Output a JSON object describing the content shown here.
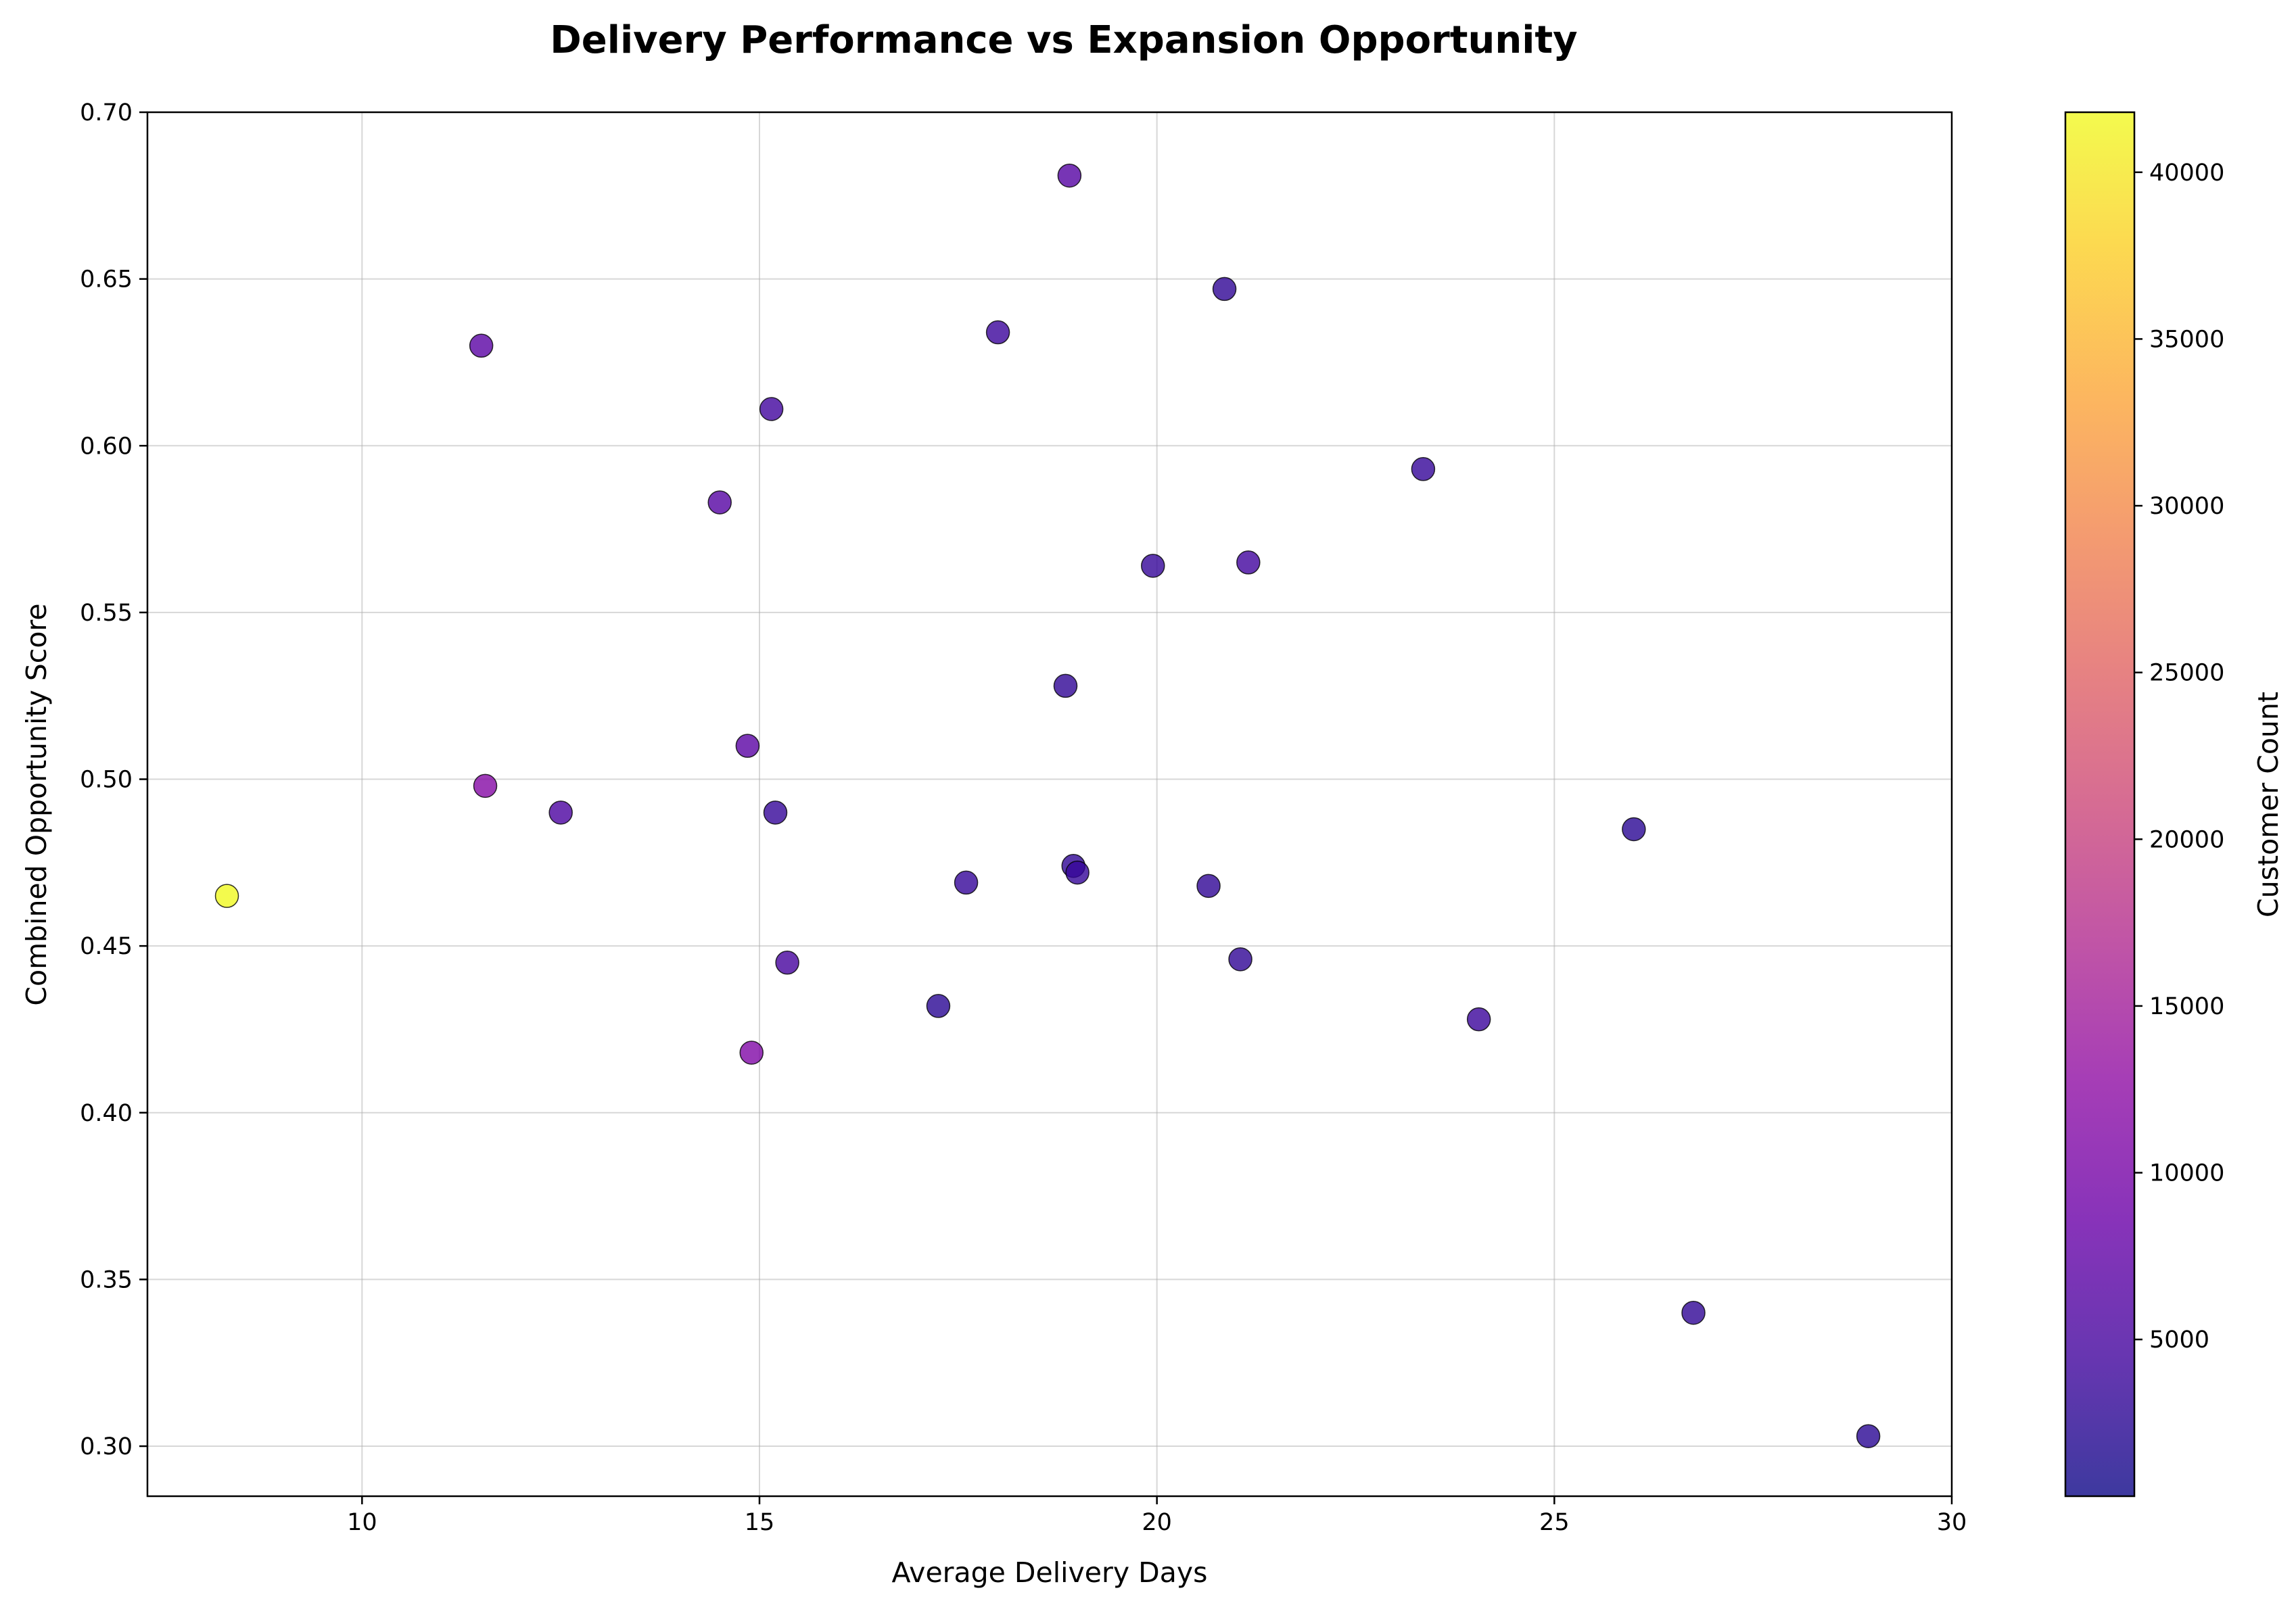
{
  "chart_data": {
    "type": "scatter",
    "title": "Delivery Performance vs Expansion Opportunity",
    "xlabel": "Average Delivery Days",
    "ylabel": "Combined Opportunity Score",
    "colorbar_label": "Customer Count",
    "xlim": [
      7.3,
      30
    ],
    "ylim": [
      0.285,
      0.7
    ],
    "xticks": [
      10,
      15,
      20,
      25,
      30
    ],
    "yticks": [
      0.3,
      0.35,
      0.4,
      0.45,
      0.5,
      0.55,
      0.6,
      0.65,
      0.7
    ],
    "xtick_labels": [
      "10",
      "15",
      "20",
      "25",
      "30"
    ],
    "ytick_labels": [
      "0.30",
      "0.35",
      "0.40",
      "0.45",
      "0.50",
      "0.55",
      "0.60",
      "0.65",
      "0.70"
    ],
    "colorbar_range": [
      300,
      41800
    ],
    "colorbar_ticks": [
      5000,
      10000,
      15000,
      20000,
      25000,
      30000,
      35000,
      40000
    ],
    "colorbar_tick_labels": [
      "5000",
      "10000",
      "15000",
      "20000",
      "25000",
      "30000",
      "35000",
      "40000"
    ],
    "colormap": "plasma",
    "grid": true,
    "points": [
      {
        "x": 8.3,
        "y": 0.465,
        "c": 41800
      },
      {
        "x": 11.5,
        "y": 0.63,
        "c": 7000
      },
      {
        "x": 11.55,
        "y": 0.498,
        "c": 11500
      },
      {
        "x": 12.5,
        "y": 0.49,
        "c": 5500
      },
      {
        "x": 14.5,
        "y": 0.583,
        "c": 6500
      },
      {
        "x": 14.85,
        "y": 0.51,
        "c": 7000
      },
      {
        "x": 14.9,
        "y": 0.418,
        "c": 11000
      },
      {
        "x": 15.15,
        "y": 0.611,
        "c": 4500
      },
      {
        "x": 15.2,
        "y": 0.49,
        "c": 3500
      },
      {
        "x": 15.35,
        "y": 0.445,
        "c": 5000
      },
      {
        "x": 17.25,
        "y": 0.432,
        "c": 2500
      },
      {
        "x": 17.6,
        "y": 0.469,
        "c": 3500
      },
      {
        "x": 18.0,
        "y": 0.634,
        "c": 4000
      },
      {
        "x": 18.85,
        "y": 0.528,
        "c": 3000
      },
      {
        "x": 18.9,
        "y": 0.681,
        "c": 6500
      },
      {
        "x": 18.95,
        "y": 0.474,
        "c": 3000
      },
      {
        "x": 19.0,
        "y": 0.472,
        "c": 3500
      },
      {
        "x": 19.95,
        "y": 0.564,
        "c": 3500
      },
      {
        "x": 20.65,
        "y": 0.468,
        "c": 3000
      },
      {
        "x": 20.85,
        "y": 0.647,
        "c": 3000
      },
      {
        "x": 21.05,
        "y": 0.446,
        "c": 3000
      },
      {
        "x": 21.15,
        "y": 0.565,
        "c": 4500
      },
      {
        "x": 23.35,
        "y": 0.593,
        "c": 3500
      },
      {
        "x": 24.05,
        "y": 0.428,
        "c": 4000
      },
      {
        "x": 26.0,
        "y": 0.485,
        "c": 2500
      },
      {
        "x": 26.75,
        "y": 0.34,
        "c": 3000
      },
      {
        "x": 28.95,
        "y": 0.303,
        "c": 2500
      }
    ]
  }
}
